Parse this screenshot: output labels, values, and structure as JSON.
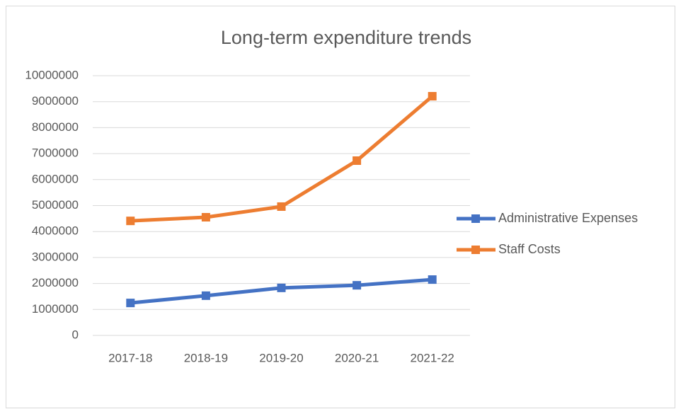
{
  "chart_data": {
    "type": "line",
    "title": "Long-term expenditure trends",
    "categories": [
      "2017-18",
      "2018-19",
      "2019-20",
      "2020-21",
      "2021-22"
    ],
    "series": [
      {
        "name": "Administrative Expenses",
        "color": "#4472c4",
        "values": [
          1250000,
          1530000,
          1830000,
          1930000,
          2150000
        ]
      },
      {
        "name": "Staff Costs",
        "color": "#ed7d31",
        "values": [
          4410000,
          4550000,
          4960000,
          6730000,
          9210000
        ]
      }
    ],
    "ylim": [
      0,
      10000000
    ],
    "yticks": [
      0,
      1000000,
      2000000,
      3000000,
      4000000,
      5000000,
      6000000,
      7000000,
      8000000,
      9000000,
      10000000
    ],
    "grid": true,
    "legend": "right"
  }
}
